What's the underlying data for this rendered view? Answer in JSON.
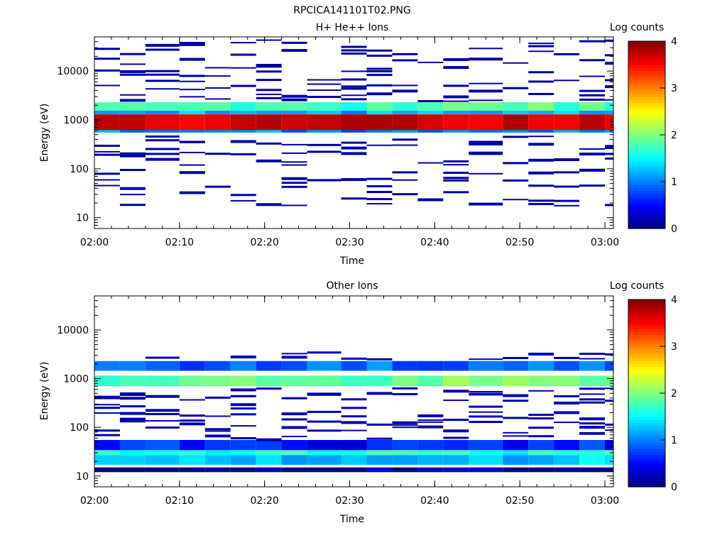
{
  "page_title": "RPCICA141101T02.PNG",
  "chart_data": [
    {
      "type": "heatmap",
      "title": "H+ He++ Ions",
      "xlabel": "Time",
      "ylabel": "Energy (eV)",
      "x_tick_labels": [
        "02:00",
        "02:10",
        "02:20",
        "02:30",
        "02:40",
        "02:50",
        "03:00"
      ],
      "xlim": [
        "02:00",
        "03:01"
      ],
      "y_scale": "log",
      "y_tick_labels": [
        "10",
        "100",
        "1000",
        "10000"
      ],
      "ylim": [
        6,
        50000
      ],
      "colorbar": {
        "label": "Log counts",
        "range": [
          0,
          4
        ],
        "tick_labels": [
          "0",
          "1",
          "2",
          "3",
          "4"
        ]
      },
      "grid": false,
      "time_columns": [
        "02:00",
        "02:03",
        "02:06",
        "02:10",
        "02:13",
        "02:16",
        "02:19",
        "02:22",
        "02:25",
        "02:29",
        "02:32",
        "02:35",
        "02:38",
        "02:41",
        "02:44",
        "02:48",
        "02:51",
        "02:54",
        "02:57",
        "03:00"
      ],
      "bands": [
        {
          "emin": 600,
          "emax": 1300,
          "level": 3.7
        },
        {
          "emin": 1300,
          "emax": 1550,
          "level": 1.2
        },
        {
          "emin": 1550,
          "emax": 2300,
          "level": 1.8
        },
        {
          "emin": 550,
          "emax": 620,
          "level": 1.0
        }
      ],
      "sparse_energies": [
        18,
        23,
        30,
        35,
        42,
        55,
        62,
        85,
        95,
        125,
        150,
        190,
        210,
        270,
        320,
        380,
        450,
        2600,
        3200,
        4200,
        5200,
        6500,
        8000,
        9800,
        12000,
        14000,
        18000,
        22000,
        27000,
        33000,
        40000
      ],
      "sparse_fill": 0.35,
      "sparse_level": 0.15
    },
    {
      "type": "heatmap",
      "title": "Other Ions",
      "xlabel": "Time",
      "ylabel": "Energy (eV)",
      "x_tick_labels": [
        "02:00",
        "02:10",
        "02:20",
        "02:30",
        "02:40",
        "02:50",
        "03:00"
      ],
      "xlim": [
        "02:00",
        "03:01"
      ],
      "y_scale": "log",
      "y_tick_labels": [
        "10",
        "100",
        "1000",
        "10000"
      ],
      "ylim": [
        6,
        50000
      ],
      "colorbar": {
        "label": "Log counts",
        "range": [
          0,
          4
        ],
        "tick_labels": [
          "0",
          "1",
          "2",
          "3",
          "4"
        ]
      },
      "grid": false,
      "time_columns": [
        "02:00",
        "02:03",
        "02:06",
        "02:10",
        "02:13",
        "02:16",
        "02:19",
        "02:22",
        "02:25",
        "02:29",
        "02:32",
        "02:35",
        "02:38",
        "02:41",
        "02:44",
        "02:48",
        "02:51",
        "02:54",
        "02:57",
        "03:00"
      ],
      "bands": [
        {
          "emin": 700,
          "emax": 1150,
          "level": 1.9
        },
        {
          "emin": 1450,
          "emax": 2300,
          "level": 0.9
        },
        {
          "emin": 17,
          "emax": 27,
          "level": 1.3
        },
        {
          "emin": 27,
          "emax": 34,
          "level": 1.6
        },
        {
          "emin": 34,
          "emax": 55,
          "level": 0.6
        },
        {
          "emin": 12,
          "emax": 15,
          "level": 0.1
        }
      ],
      "sparse_energies": [
        60,
        70,
        80,
        95,
        110,
        130,
        150,
        180,
        210,
        250,
        300,
        380,
        450,
        520,
        600,
        2600,
        3200
      ],
      "sparse_fill": 0.4,
      "sparse_level": 0.2
    }
  ]
}
